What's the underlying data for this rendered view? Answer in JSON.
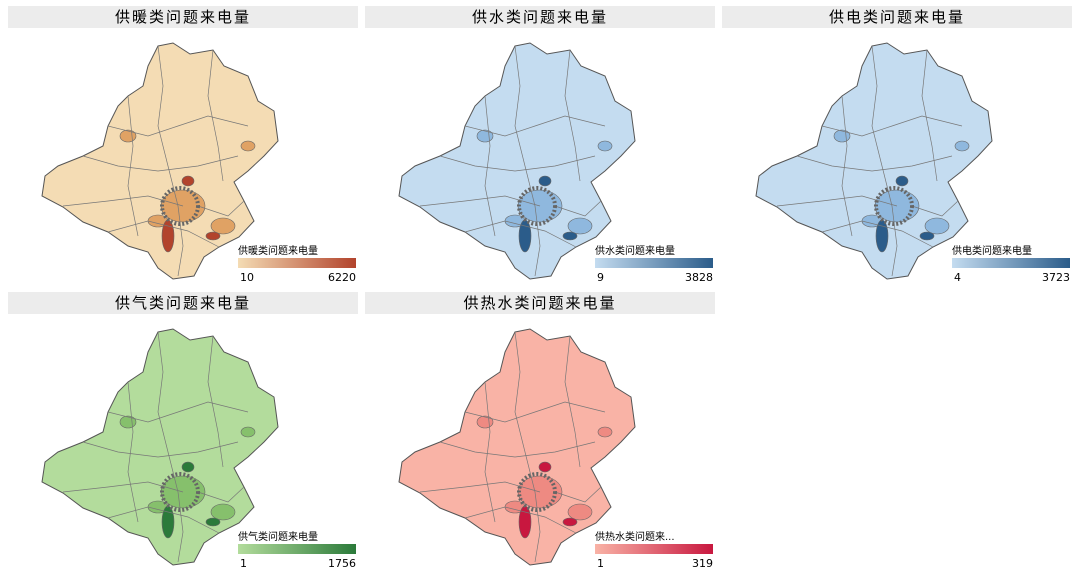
{
  "panels": [
    {
      "title": "供暖类问题来电量",
      "legend_title": "供暖类问题来电量",
      "min": 10,
      "max": 6220,
      "colors": [
        "#f4dcb4",
        "#e0a264",
        "#b2432c"
      ]
    },
    {
      "title": "供水类问题来电量",
      "legend_title": "供水类问题来电量",
      "min": 9,
      "max": 3828,
      "colors": [
        "#c4dcf0",
        "#8fb8de",
        "#2b5c8a"
      ]
    },
    {
      "title": "供电类问题来电量",
      "legend_title": "供电类问题来电量",
      "min": 4,
      "max": 3723,
      "colors": [
        "#c4dcf0",
        "#8fb8de",
        "#2b5c8a"
      ]
    },
    {
      "title": "供气类问题来电量",
      "legend_title": "供气类问题来电量",
      "min": 1,
      "max": 1756,
      "colors": [
        "#b3dc9c",
        "#86c06c",
        "#2b7a3a"
      ]
    },
    {
      "title": "供热水类问题来电量",
      "legend_title": "供热水类问题来...",
      "min": 1,
      "max": 319,
      "colors": [
        "#f9b3a6",
        "#ee8a82",
        "#c8173f"
      ]
    }
  ]
}
